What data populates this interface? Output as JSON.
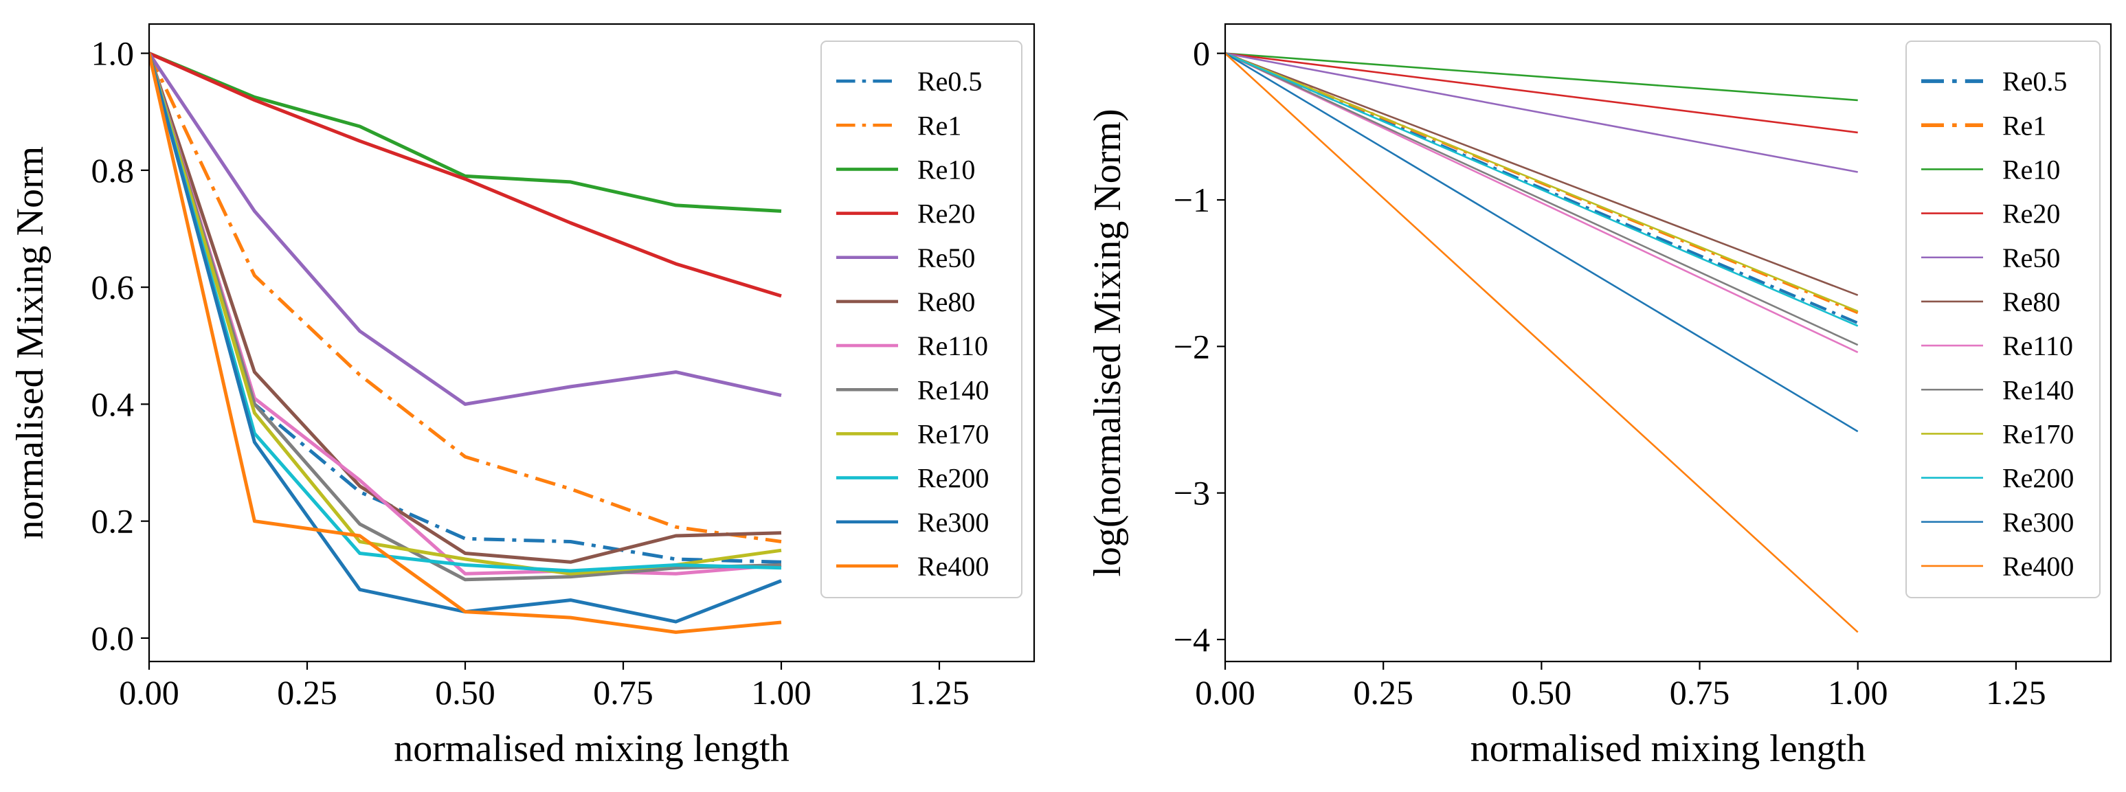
{
  "chart_data": [
    {
      "type": "line",
      "xlabel": "normalised mixing length",
      "ylabel": "normalised Mixing Norm",
      "xlim": [
        0.0,
        1.4
      ],
      "ylim": [
        -0.04,
        1.05
      ],
      "xticks": [
        0.0,
        0.25,
        0.5,
        0.75,
        1.0,
        1.25
      ],
      "xtick_labels": [
        "0.00",
        "0.25",
        "0.50",
        "0.75",
        "1.00",
        "1.25"
      ],
      "yticks": [
        0.0,
        0.2,
        0.4,
        0.6,
        0.8,
        1.0
      ],
      "ytick_labels": [
        "0.0",
        "0.2",
        "0.4",
        "0.6",
        "0.8",
        "1.0"
      ],
      "legend_position": "top-right",
      "x": [
        0.0,
        0.1667,
        0.3333,
        0.5,
        0.6667,
        0.8333,
        1.0
      ],
      "series": [
        {
          "name": "Re0.5",
          "color": "#1f77b4",
          "style": "dashdot",
          "values": [
            1.0,
            0.4,
            0.25,
            0.17,
            0.165,
            0.135,
            0.13
          ]
        },
        {
          "name": "Re1",
          "color": "#ff7f0e",
          "style": "dashdot",
          "values": [
            1.0,
            0.62,
            0.45,
            0.31,
            0.255,
            0.19,
            0.165
          ]
        },
        {
          "name": "Re10",
          "color": "#2ca02c",
          "style": "solid",
          "values": [
            1.0,
            0.925,
            0.875,
            0.79,
            0.78,
            0.74,
            0.73
          ]
        },
        {
          "name": "Re20",
          "color": "#d62728",
          "style": "solid",
          "values": [
            1.0,
            0.92,
            0.85,
            0.785,
            0.71,
            0.64,
            0.585
          ]
        },
        {
          "name": "Re50",
          "color": "#9467bd",
          "style": "solid",
          "values": [
            1.0,
            0.73,
            0.525,
            0.4,
            0.43,
            0.455,
            0.415
          ]
        },
        {
          "name": "Re80",
          "color": "#8c564b",
          "style": "solid",
          "values": [
            1.0,
            0.455,
            0.26,
            0.145,
            0.13,
            0.175,
            0.18
          ]
        },
        {
          "name": "Re110",
          "color": "#e377c2",
          "style": "solid",
          "values": [
            1.0,
            0.41,
            0.27,
            0.11,
            0.115,
            0.11,
            0.125
          ]
        },
        {
          "name": "Re140",
          "color": "#7f7f7f",
          "style": "solid",
          "values": [
            1.0,
            0.4,
            0.195,
            0.1,
            0.105,
            0.12,
            0.125
          ]
        },
        {
          "name": "Re170",
          "color": "#bcbd22",
          "style": "solid",
          "values": [
            1.0,
            0.385,
            0.165,
            0.135,
            0.11,
            0.125,
            0.15
          ]
        },
        {
          "name": "Re200",
          "color": "#17becf",
          "style": "solid",
          "values": [
            1.0,
            0.35,
            0.145,
            0.125,
            0.115,
            0.125,
            0.12
          ]
        },
        {
          "name": "Re300",
          "color": "#1f77b4",
          "style": "solid",
          "values": [
            1.0,
            0.335,
            0.083,
            0.045,
            0.065,
            0.028,
            0.098
          ]
        },
        {
          "name": "Re400",
          "color": "#ff7f0e",
          "style": "solid",
          "values": [
            1.0,
            0.2,
            0.175,
            0.045,
            0.035,
            0.01,
            0.027
          ]
        }
      ]
    },
    {
      "type": "line",
      "xlabel": "normalised mixing length",
      "ylabel": "log(normalised Mixing Norm)",
      "xlim": [
        0.0,
        1.4
      ],
      "ylim": [
        -4.15,
        0.2
      ],
      "xticks": [
        0.0,
        0.25,
        0.5,
        0.75,
        1.0,
        1.25
      ],
      "xtick_labels": [
        "0.00",
        "0.25",
        "0.50",
        "0.75",
        "1.00",
        "1.25"
      ],
      "yticks": [
        0,
        -1,
        -2,
        -3,
        -4
      ],
      "ytick_labels": [
        "0",
        "−1",
        "−2",
        "−3",
        "−4"
      ],
      "legend_position": "top-right",
      "x": [
        0.0,
        1.0
      ],
      "series": [
        {
          "name": "Re0.5",
          "color": "#1f77b4",
          "style": "dashdot",
          "values": [
            0.0,
            -1.84
          ]
        },
        {
          "name": "Re1",
          "color": "#ff7f0e",
          "style": "dashdot",
          "values": [
            0.0,
            -1.77
          ]
        },
        {
          "name": "Re10",
          "color": "#2ca02c",
          "style": "solid",
          "values": [
            0.0,
            -0.32
          ]
        },
        {
          "name": "Re20",
          "color": "#d62728",
          "style": "solid",
          "values": [
            0.0,
            -0.54
          ]
        },
        {
          "name": "Re50",
          "color": "#9467bd",
          "style": "solid",
          "values": [
            0.0,
            -0.81
          ]
        },
        {
          "name": "Re80",
          "color": "#8c564b",
          "style": "solid",
          "values": [
            0.0,
            -1.65
          ]
        },
        {
          "name": "Re110",
          "color": "#e377c2",
          "style": "solid",
          "values": [
            0.0,
            -2.04
          ]
        },
        {
          "name": "Re140",
          "color": "#7f7f7f",
          "style": "solid",
          "values": [
            0.0,
            -1.99
          ]
        },
        {
          "name": "Re170",
          "color": "#bcbd22",
          "style": "solid",
          "values": [
            0.0,
            -1.76
          ]
        },
        {
          "name": "Re200",
          "color": "#17becf",
          "style": "solid",
          "values": [
            0.0,
            -1.86
          ]
        },
        {
          "name": "Re300",
          "color": "#1f77b4",
          "style": "solid",
          "values": [
            0.0,
            -2.58
          ]
        },
        {
          "name": "Re400",
          "color": "#ff7f0e",
          "style": "solid",
          "values": [
            0.0,
            -3.95
          ]
        }
      ]
    }
  ]
}
